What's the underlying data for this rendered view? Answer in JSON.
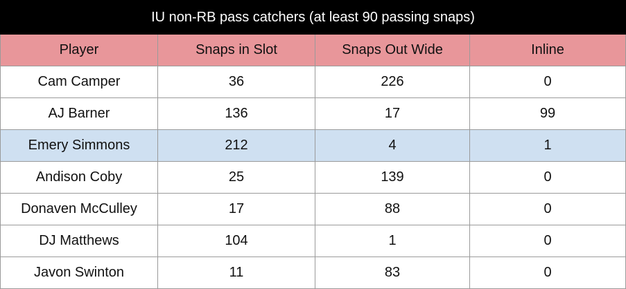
{
  "title": "IU non-RB pass catchers (at least 90 passing snaps)",
  "columns": [
    "Player",
    "Snaps in Slot",
    "Snaps Out Wide",
    "Inline"
  ],
  "rows": [
    {
      "player": "Cam Camper",
      "slot": "36",
      "wide": "226",
      "inline": "0",
      "highlight": false
    },
    {
      "player": "AJ Barner",
      "slot": "136",
      "wide": "17",
      "inline": "99",
      "highlight": false
    },
    {
      "player": "Emery Simmons",
      "slot": "212",
      "wide": "4",
      "inline": "1",
      "highlight": true
    },
    {
      "player": "Andison Coby",
      "slot": "25",
      "wide": "139",
      "inline": "0",
      "highlight": false
    },
    {
      "player": "Donaven McCulley",
      "slot": "17",
      "wide": "88",
      "inline": "0",
      "highlight": false
    },
    {
      "player": "DJ Matthews",
      "slot": "104",
      "wide": "1",
      "inline": "0",
      "highlight": false
    },
    {
      "player": "Javon Swinton",
      "slot": "11",
      "wide": "83",
      "inline": "0",
      "highlight": false
    }
  ],
  "colors": {
    "title_bg": "#000000",
    "header_bg": "#e8969a",
    "highlight_bg": "#cfe0f1"
  }
}
